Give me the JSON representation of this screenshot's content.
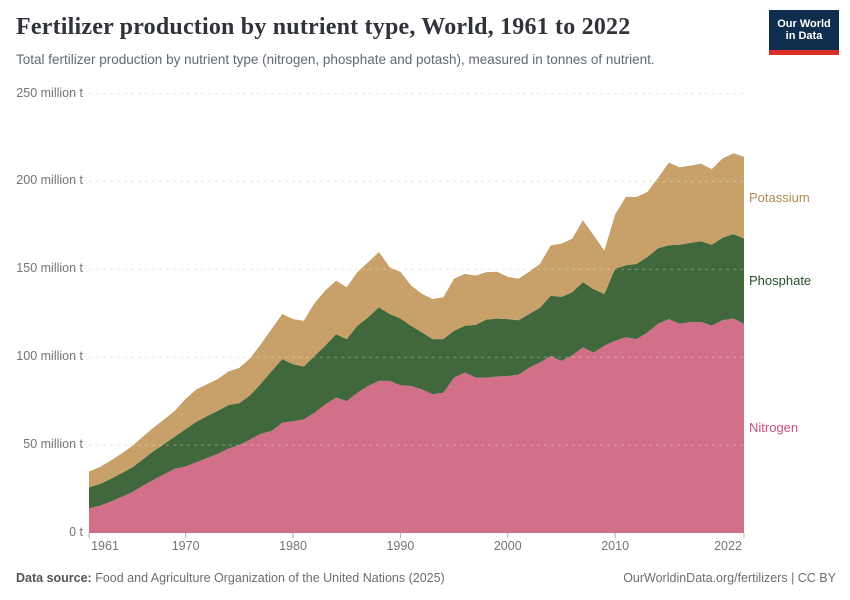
{
  "header": {
    "title": "Fertilizer production by nutrient type, World, 1961 to 2022",
    "subtitle": "Total fertilizer production by nutrient type (nitrogen, phosphate and potash), measured in tonnes of nutrient.",
    "logo": {
      "line1": "Our World",
      "line2": "in Data"
    }
  },
  "footer": {
    "source_label": "Data source:",
    "source_text": " Food and Agriculture Organization of the United Nations (2025)",
    "link_text": "OurWorldinData.org/fertilizers | CC BY"
  },
  "chart_data": {
    "type": "area",
    "stacked": true,
    "title": "Fertilizer production by nutrient type, World, 1961 to 2022",
    "unit": "million t",
    "ylim": [
      0,
      250
    ],
    "grid": true,
    "legend_position": "right-of-plot",
    "x": [
      1961,
      1962,
      1963,
      1964,
      1965,
      1966,
      1967,
      1968,
      1969,
      1970,
      1971,
      1972,
      1973,
      1974,
      1975,
      1976,
      1977,
      1978,
      1979,
      1980,
      1981,
      1982,
      1983,
      1984,
      1985,
      1986,
      1987,
      1988,
      1989,
      1990,
      1991,
      1992,
      1993,
      1994,
      1995,
      1996,
      1997,
      1998,
      1999,
      2000,
      2001,
      2002,
      2003,
      2004,
      2005,
      2006,
      2007,
      2008,
      2009,
      2010,
      2011,
      2012,
      2013,
      2014,
      2015,
      2016,
      2017,
      2018,
      2019,
      2020,
      2021,
      2022
    ],
    "xticks": [
      1961,
      1970,
      1980,
      1990,
      2000,
      2010,
      2022
    ],
    "yticks": [
      {
        "value": 0,
        "label": "0 t"
      },
      {
        "value": 50,
        "label": "50 million t"
      },
      {
        "value": 100,
        "label": "100 million t"
      },
      {
        "value": 150,
        "label": "150 million t"
      },
      {
        "value": 200,
        "label": "200 million t"
      },
      {
        "value": 250,
        "label": "250 million t"
      }
    ],
    "series": [
      {
        "name": "Nitrogen",
        "fill_color": "#d2708a",
        "label_color": "#c4527a",
        "values": [
          14.0,
          15.5,
          17.8,
          20.5,
          23.2,
          26.8,
          30.2,
          33.4,
          36.5,
          37.8,
          40.2,
          42.6,
          45.1,
          48.0,
          50.1,
          53.2,
          56.4,
          58.0,
          62.7,
          63.6,
          64.6,
          68.4,
          73.1,
          77.0,
          75.0,
          79.8,
          83.6,
          86.5,
          86.5,
          84.0,
          83.6,
          81.7,
          78.9,
          79.8,
          88.4,
          91.3,
          88.4,
          88.4,
          89.0,
          89.3,
          90.0,
          94.1,
          97.0,
          100.7,
          97.9,
          101.0,
          105.6,
          102.7,
          106.5,
          109.3,
          111.3,
          110.3,
          114.0,
          119.0,
          121.7,
          119.0,
          120.0,
          120.0,
          118.0,
          121.0,
          122.0,
          119.0
        ]
      },
      {
        "name": "Phosphate",
        "fill_color": "#40683c",
        "label_color": "#24522b",
        "values": [
          12.0,
          12.3,
          12.9,
          13.4,
          14.0,
          15.0,
          16.3,
          17.2,
          18.4,
          21.3,
          23.1,
          23.9,
          24.4,
          24.8,
          23.8,
          25.1,
          28.5,
          34.0,
          36.2,
          32.4,
          30.1,
          32.3,
          33.4,
          36.1,
          35.3,
          38.1,
          39.1,
          41.9,
          38.1,
          38.0,
          34.3,
          32.4,
          31.4,
          30.5,
          26.6,
          26.6,
          30.0,
          33.0,
          33.0,
          32.4,
          31.0,
          30.5,
          31.1,
          34.3,
          36.4,
          36.0,
          37.1,
          36.0,
          29.5,
          41.0,
          41.0,
          42.8,
          43.0,
          43.0,
          42.0,
          45.0,
          45.0,
          46.0,
          46.0,
          47.0,
          48.0,
          48.5
        ]
      },
      {
        "name": "Potassium",
        "fill_color": "#c7a06a",
        "label_color": "#b28a52",
        "values": [
          9.0,
          9.7,
          10.4,
          11.2,
          12.1,
          13.0,
          13.4,
          14.0,
          14.6,
          17.2,
          18.4,
          18.2,
          18.1,
          19.1,
          20.0,
          21.0,
          22.5,
          24.0,
          25.7,
          25.7,
          26.0,
          30.0,
          31.4,
          30.5,
          29.5,
          30.5,
          31.4,
          31.4,
          26.6,
          26.5,
          22.9,
          21.9,
          22.8,
          23.8,
          29.6,
          29.5,
          28.0,
          27.0,
          26.6,
          24.0,
          23.6,
          24.0,
          25.0,
          28.6,
          30.3,
          30.4,
          35.2,
          30.6,
          24.7,
          30.8,
          39.0,
          38.0,
          37.0,
          40.0,
          47.0,
          44.0,
          44.0,
          44.0,
          43.0,
          45.0,
          46.0,
          46.5
        ]
      }
    ]
  }
}
